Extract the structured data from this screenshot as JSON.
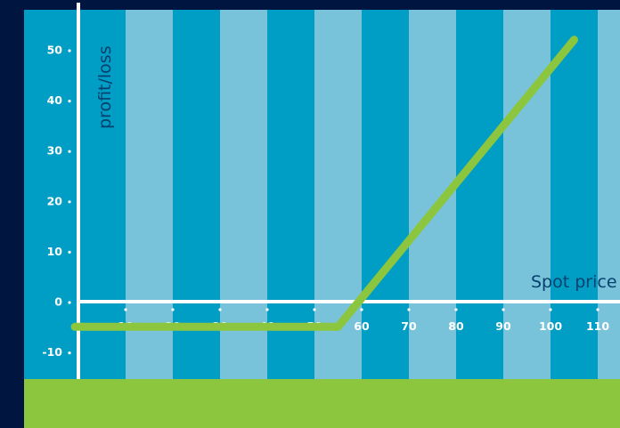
{
  "chart_data": {
    "type": "line",
    "xlabel": "Spot price",
    "ylabel": "profit/loss",
    "x_ticks": [
      10,
      20,
      30,
      40,
      50,
      60,
      70,
      80,
      90,
      100,
      110
    ],
    "y_ticks": [
      50,
      40,
      30,
      20,
      10,
      0,
      -10
    ],
    "x": [
      0,
      55,
      105
    ],
    "y": [
      -5,
      -5,
      52
    ],
    "xlim": [
      -3,
      115
    ],
    "ylim": [
      -15,
      60
    ],
    "grid": false,
    "colors": {
      "page": "#00153f",
      "band_dark": "#009ec4",
      "band_light": "#78c3da",
      "line": "#8cc63f",
      "footer": "#8cc63f",
      "axis": "#ffffff",
      "axis_title": "#06406e"
    }
  }
}
